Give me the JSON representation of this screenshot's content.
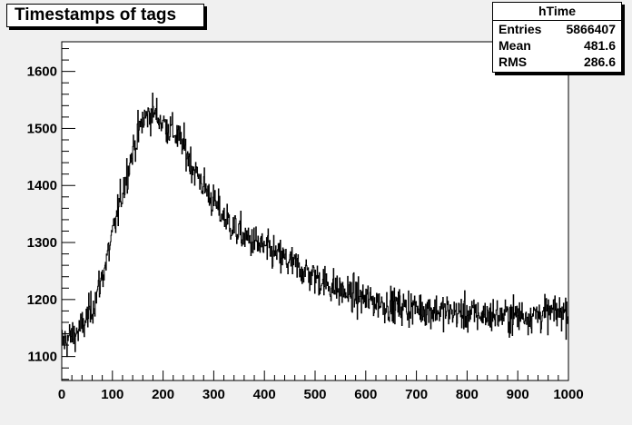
{
  "chart_data": {
    "type": "histogram",
    "title": "Timestamps of tags",
    "xlim": [
      0,
      1000
    ],
    "ylim": [
      1058,
      1652
    ],
    "x_ticks": [
      0,
      100,
      200,
      300,
      400,
      500,
      600,
      700,
      800,
      900,
      1000
    ],
    "y_ticks": [
      1100,
      1200,
      1300,
      1400,
      1500,
      1600
    ],
    "grid": false,
    "stats_box": {
      "name": "hTime",
      "rows": [
        {
          "label": "Entries",
          "value": "5866407"
        },
        {
          "label": "Mean",
          "value": "481.6"
        },
        {
          "label": "RMS",
          "value": "286.6"
        }
      ]
    },
    "series": [
      {
        "bins": 1000,
        "bin_width": 1,
        "profile": {
          "x": [
            0,
            20,
            40,
            60,
            80,
            100,
            120,
            140,
            160,
            180,
            200,
            220,
            240,
            260,
            280,
            300,
            320,
            340,
            360,
            380,
            400,
            450,
            500,
            550,
            600,
            650,
            700,
            750,
            800,
            850,
            900,
            950,
            1000
          ],
          "y": [
            1125,
            1135,
            1150,
            1185,
            1240,
            1310,
            1390,
            1460,
            1515,
            1530,
            1510,
            1495,
            1470,
            1430,
            1400,
            1370,
            1345,
            1325,
            1310,
            1300,
            1290,
            1265,
            1240,
            1215,
            1200,
            1190,
            1185,
            1180,
            1175,
            1172,
            1172,
            1175,
            1180
          ]
        },
        "noise_amplitude": 40
      }
    ]
  },
  "colors": {
    "background": "#f0f0f0",
    "frame_fill": "#ffffff",
    "line": "#000000"
  }
}
